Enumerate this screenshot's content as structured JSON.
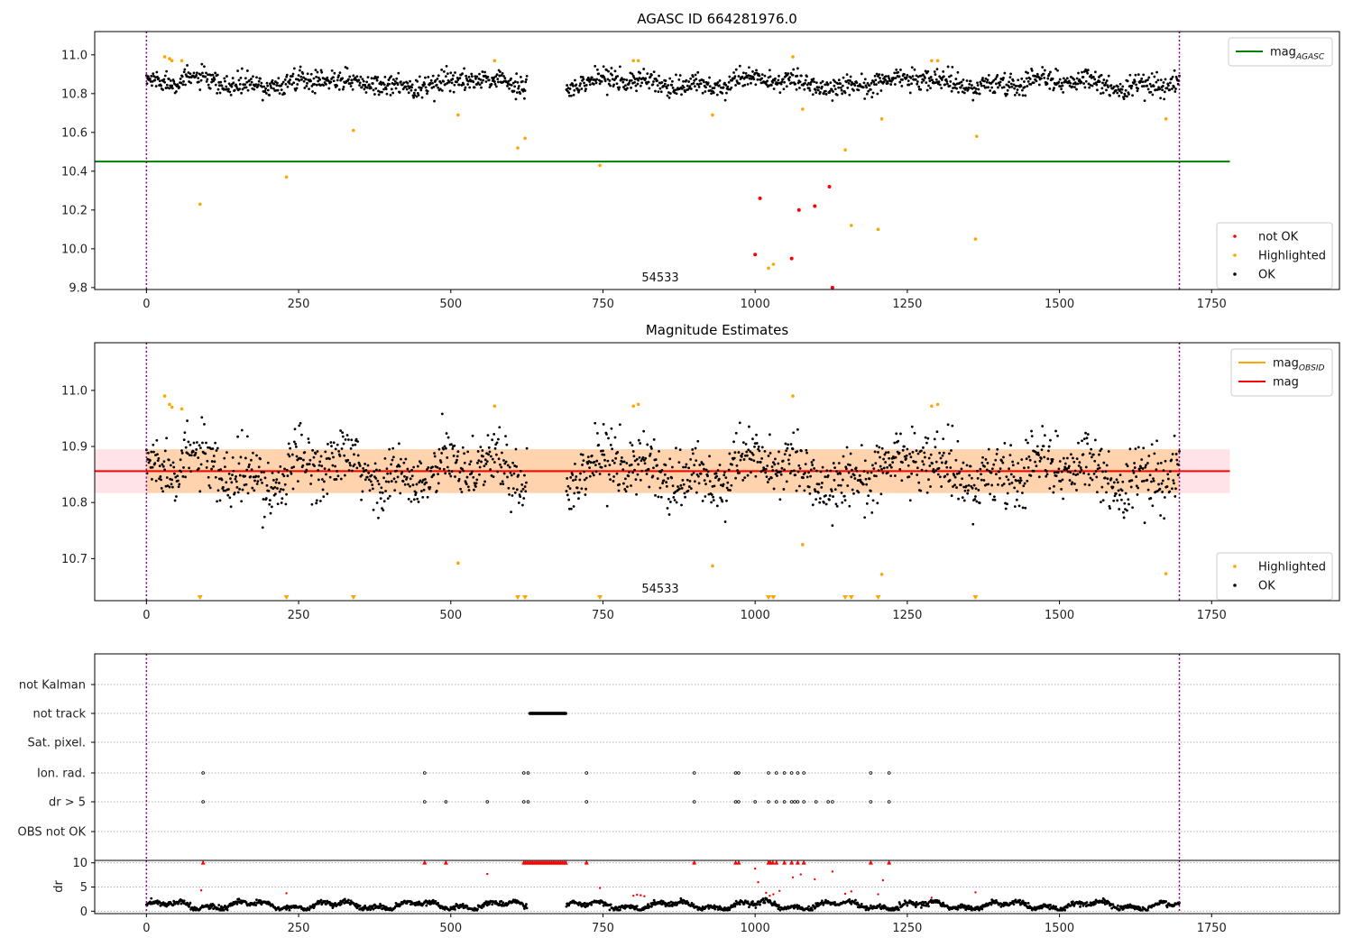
{
  "chart_data": [
    {
      "type": "scatter",
      "title": "AGASC ID 664281976.0",
      "xlim": [
        -85,
        1960
      ],
      "ylim": [
        9.79,
        11.12
      ],
      "xticks": [
        0,
        250,
        500,
        750,
        1000,
        1250,
        1500,
        1750
      ],
      "yticks": [
        9.8,
        10.0,
        10.2,
        10.4,
        10.6,
        10.8,
        11.0
      ],
      "obsid_label": "54533",
      "colors": {
        "ok": "#000000",
        "highlighted": "#ffa500",
        "not_ok": "#ff0000",
        "agasc": "#008000",
        "boundary": "#800080"
      },
      "mag_agasc": {
        "value": 10.45,
        "x_range": [
          -85,
          1780
        ]
      },
      "obs_boundaries": [
        0,
        1697
      ],
      "ok_segments": [
        {
          "x": [
            0,
            625
          ],
          "mean": 10.855,
          "noise": 0.035
        },
        {
          "x": [
            690,
            1697
          ],
          "mean": 10.855,
          "noise": 0.035
        }
      ],
      "highlighted": [
        [
          30,
          10.99
        ],
        [
          38,
          10.98
        ],
        [
          42,
          10.97
        ],
        [
          58,
          10.97
        ],
        [
          88,
          10.23
        ],
        [
          230,
          10.37
        ],
        [
          340,
          10.61
        ],
        [
          512,
          10.69
        ],
        [
          572,
          10.97
        ],
        [
          610,
          10.52
        ],
        [
          622,
          10.57
        ],
        [
          745,
          10.43
        ],
        [
          800,
          10.97
        ],
        [
          808,
          10.97
        ],
        [
          930,
          10.69
        ],
        [
          1022,
          9.9
        ],
        [
          1030,
          9.92
        ],
        [
          1062,
          10.99
        ],
        [
          1078,
          10.72
        ],
        [
          1148,
          10.51
        ],
        [
          1158,
          10.12
        ],
        [
          1202,
          10.1
        ],
        [
          1208,
          10.67
        ],
        [
          1290,
          10.97
        ],
        [
          1300,
          10.97
        ],
        [
          1362,
          10.05
        ],
        [
          1364,
          10.58
        ],
        [
          1675,
          10.67
        ]
      ],
      "not_ok": [
        [
          1000,
          9.97
        ],
        [
          1008,
          10.26
        ],
        [
          1060,
          9.95
        ],
        [
          1072,
          10.2
        ],
        [
          1098,
          10.22
        ],
        [
          1122,
          10.32
        ],
        [
          1127,
          9.8
        ]
      ],
      "legends": [
        {
          "position": "upper-right",
          "entries": [
            {
              "label": "mag",
              "sub": "AGASC",
              "marker": "line",
              "color": "#008000"
            }
          ]
        },
        {
          "position": "lower-right",
          "entries": [
            {
              "label": "not OK",
              "marker": "dot",
              "color": "#ff0000"
            },
            {
              "label": "Highlighted",
              "marker": "dot",
              "color": "#ffa500"
            },
            {
              "label": "OK",
              "marker": "dot",
              "color": "#000000"
            }
          ]
        }
      ]
    },
    {
      "type": "scatter",
      "title": "Magnitude Estimates",
      "xlim": [
        -85,
        1960
      ],
      "ylim": [
        10.625,
        11.085
      ],
      "xticks": [
        0,
        250,
        500,
        750,
        1000,
        1250,
        1500,
        1750
      ],
      "yticks": [
        10.7,
        10.8,
        10.9,
        11.0
      ],
      "obsid_label": "54533",
      "mag": {
        "value": 10.856,
        "band": [
          10.817,
          10.895
        ],
        "x_range": [
          -85,
          1780
        ]
      },
      "mag_obsid": {
        "value": 10.856,
        "band": [
          10.817,
          10.895
        ],
        "x_range": [
          0,
          1697
        ]
      },
      "obs_boundaries": [
        0,
        1697
      ],
      "ok_segments": [
        {
          "x": [
            0,
            625
          ],
          "mean": 10.855,
          "noise": 0.035
        },
        {
          "x": [
            690,
            1697
          ],
          "mean": 10.855,
          "noise": 0.035
        }
      ],
      "highlighted": [
        [
          30,
          10.99
        ],
        [
          38,
          10.975
        ],
        [
          42,
          10.97
        ],
        [
          58,
          10.967
        ],
        [
          512,
          10.692
        ],
        [
          572,
          10.972
        ],
        [
          800,
          10.972
        ],
        [
          808,
          10.975
        ],
        [
          930,
          10.687
        ],
        [
          1062,
          10.99
        ],
        [
          1078,
          10.725
        ],
        [
          1208,
          10.672
        ],
        [
          1290,
          10.972
        ],
        [
          1300,
          10.975
        ],
        [
          1675,
          10.673
        ]
      ],
      "highlighted_below_range_x": [
        88,
        230,
        340,
        610,
        622,
        745,
        1022,
        1030,
        1148,
        1158,
        1202,
        1362
      ],
      "legends": [
        {
          "position": "upper-right",
          "entries": [
            {
              "label": "mag",
              "sub": "OBSID",
              "marker": "line",
              "color": "#ffa500"
            },
            {
              "label": "mag",
              "marker": "line",
              "color": "#ff0000"
            }
          ]
        },
        {
          "position": "lower-right",
          "entries": [
            {
              "label": "Highlighted",
              "marker": "dot",
              "color": "#ffa500"
            },
            {
              "label": "OK",
              "marker": "dot",
              "color": "#000000"
            }
          ]
        }
      ]
    },
    {
      "type": "scatter",
      "title": "",
      "xlim": [
        -85,
        1960
      ],
      "flag_rows": [
        "not Kalman",
        "not track",
        "Sat. pixel.",
        "Ion. rad.",
        "dr > 5",
        "OBS not OK"
      ],
      "flags": {
        "not track": {
          "ranges": [
            [
              630,
              690
            ]
          ]
        },
        "Ion. rad.": {
          "x": [
            93,
            457,
            620,
            627,
            723,
            900,
            968,
            973,
            1022,
            1035,
            1048,
            1060,
            1070,
            1080,
            1190,
            1220
          ]
        },
        "dr > 5": {
          "x": [
            93,
            457,
            492,
            560,
            620,
            627,
            723,
            900,
            968,
            973,
            1000,
            1022,
            1035,
            1048,
            1060,
            1065,
            1070,
            1080,
            1100,
            1120,
            1127,
            1190,
            1220
          ]
        }
      },
      "obs_boundaries": [
        0,
        1697
      ]
    },
    {
      "type": "scatter",
      "title": "",
      "xlim": [
        -85,
        1960
      ],
      "ylim": [
        -0.5,
        10.5
      ],
      "xticks": [
        0,
        250,
        500,
        750,
        1000,
        1250,
        1500,
        1750
      ],
      "yticks": [
        0,
        5,
        10
      ],
      "ylabel": "dr",
      "dr_gap": [
        625,
        690
      ],
      "dr_clipped_x": [
        93,
        457,
        492,
        620,
        623,
        626,
        629,
        632,
        635,
        638,
        641,
        644,
        647,
        650,
        653,
        656,
        659,
        662,
        665,
        668,
        671,
        674,
        677,
        680,
        683,
        686,
        689,
        723,
        900,
        968,
        973,
        1022,
        1025,
        1029,
        1035,
        1048,
        1060,
        1070,
        1080,
        1190,
        1220
      ],
      "dr_red_points": [
        [
          90,
          4.3
        ],
        [
          230,
          3.7
        ],
        [
          560,
          7.7
        ],
        [
          745,
          4.8
        ],
        [
          800,
          3.2
        ],
        [
          806,
          3.4
        ],
        [
          812,
          3.3
        ],
        [
          818,
          3.1
        ],
        [
          1000,
          8.8
        ],
        [
          1005,
          6.0
        ],
        [
          1018,
          3.8
        ],
        [
          1024,
          3.2
        ],
        [
          1030,
          3.5
        ],
        [
          1040,
          4.2
        ],
        [
          1062,
          7.0
        ],
        [
          1075,
          7.6
        ],
        [
          1098,
          6.6
        ],
        [
          1127,
          8.2
        ],
        [
          1148,
          3.6
        ],
        [
          1158,
          4.1
        ],
        [
          1202,
          3.5
        ],
        [
          1210,
          6.4
        ],
        [
          1290,
          2.8
        ],
        [
          1362,
          3.9
        ]
      ],
      "obs_boundaries": [
        0,
        1697
      ]
    }
  ]
}
